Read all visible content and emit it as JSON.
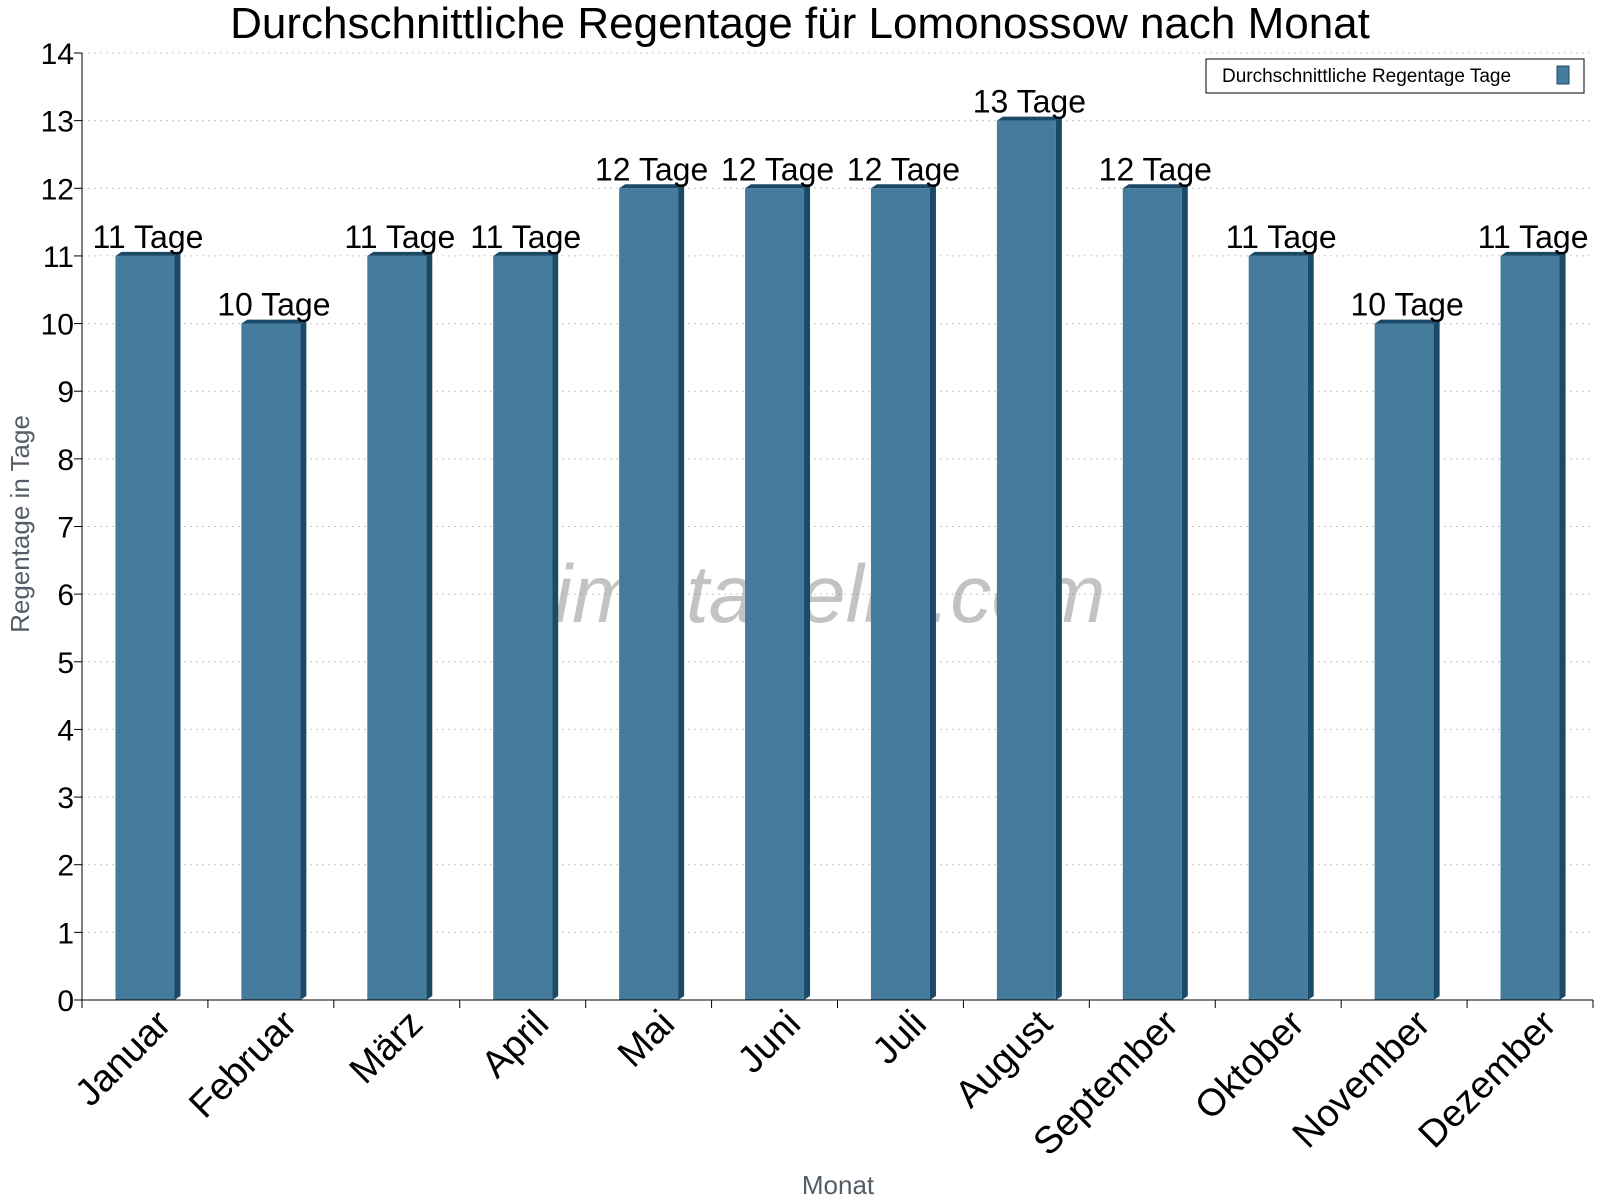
{
  "chart_data": {
    "type": "bar",
    "title": "Durchschnittliche Regentage für Lomonossow nach Monat",
    "xlabel": "Monat",
    "ylabel": "Regentage in Tage",
    "categories": [
      "Januar",
      "Februar",
      "März",
      "April",
      "Mai",
      "Juni",
      "Juli",
      "August",
      "September",
      "Oktober",
      "November",
      "Dezember"
    ],
    "series": [
      {
        "name": "Durchschnittliche Regentage Tage",
        "values": [
          11,
          10,
          11,
          11,
          12,
          12,
          12,
          13,
          12,
          11,
          10,
          11
        ],
        "data_labels": [
          "11 Tage",
          "10 Tage",
          "11 Tage",
          "11 Tage",
          "12 Tage",
          "12 Tage",
          "12 Tage",
          "13 Tage",
          "12 Tage",
          "11 Tage",
          "10 Tage",
          "11 Tage"
        ],
        "color": "#457b9d"
      }
    ],
    "ylim": [
      0,
      14
    ],
    "yticks": [
      0,
      1,
      2,
      3,
      4,
      5,
      6,
      7,
      8,
      9,
      10,
      11,
      12,
      13,
      14
    ],
    "grid": true,
    "legend_position": "top-right",
    "watermark": "klimatabelle.com"
  }
}
